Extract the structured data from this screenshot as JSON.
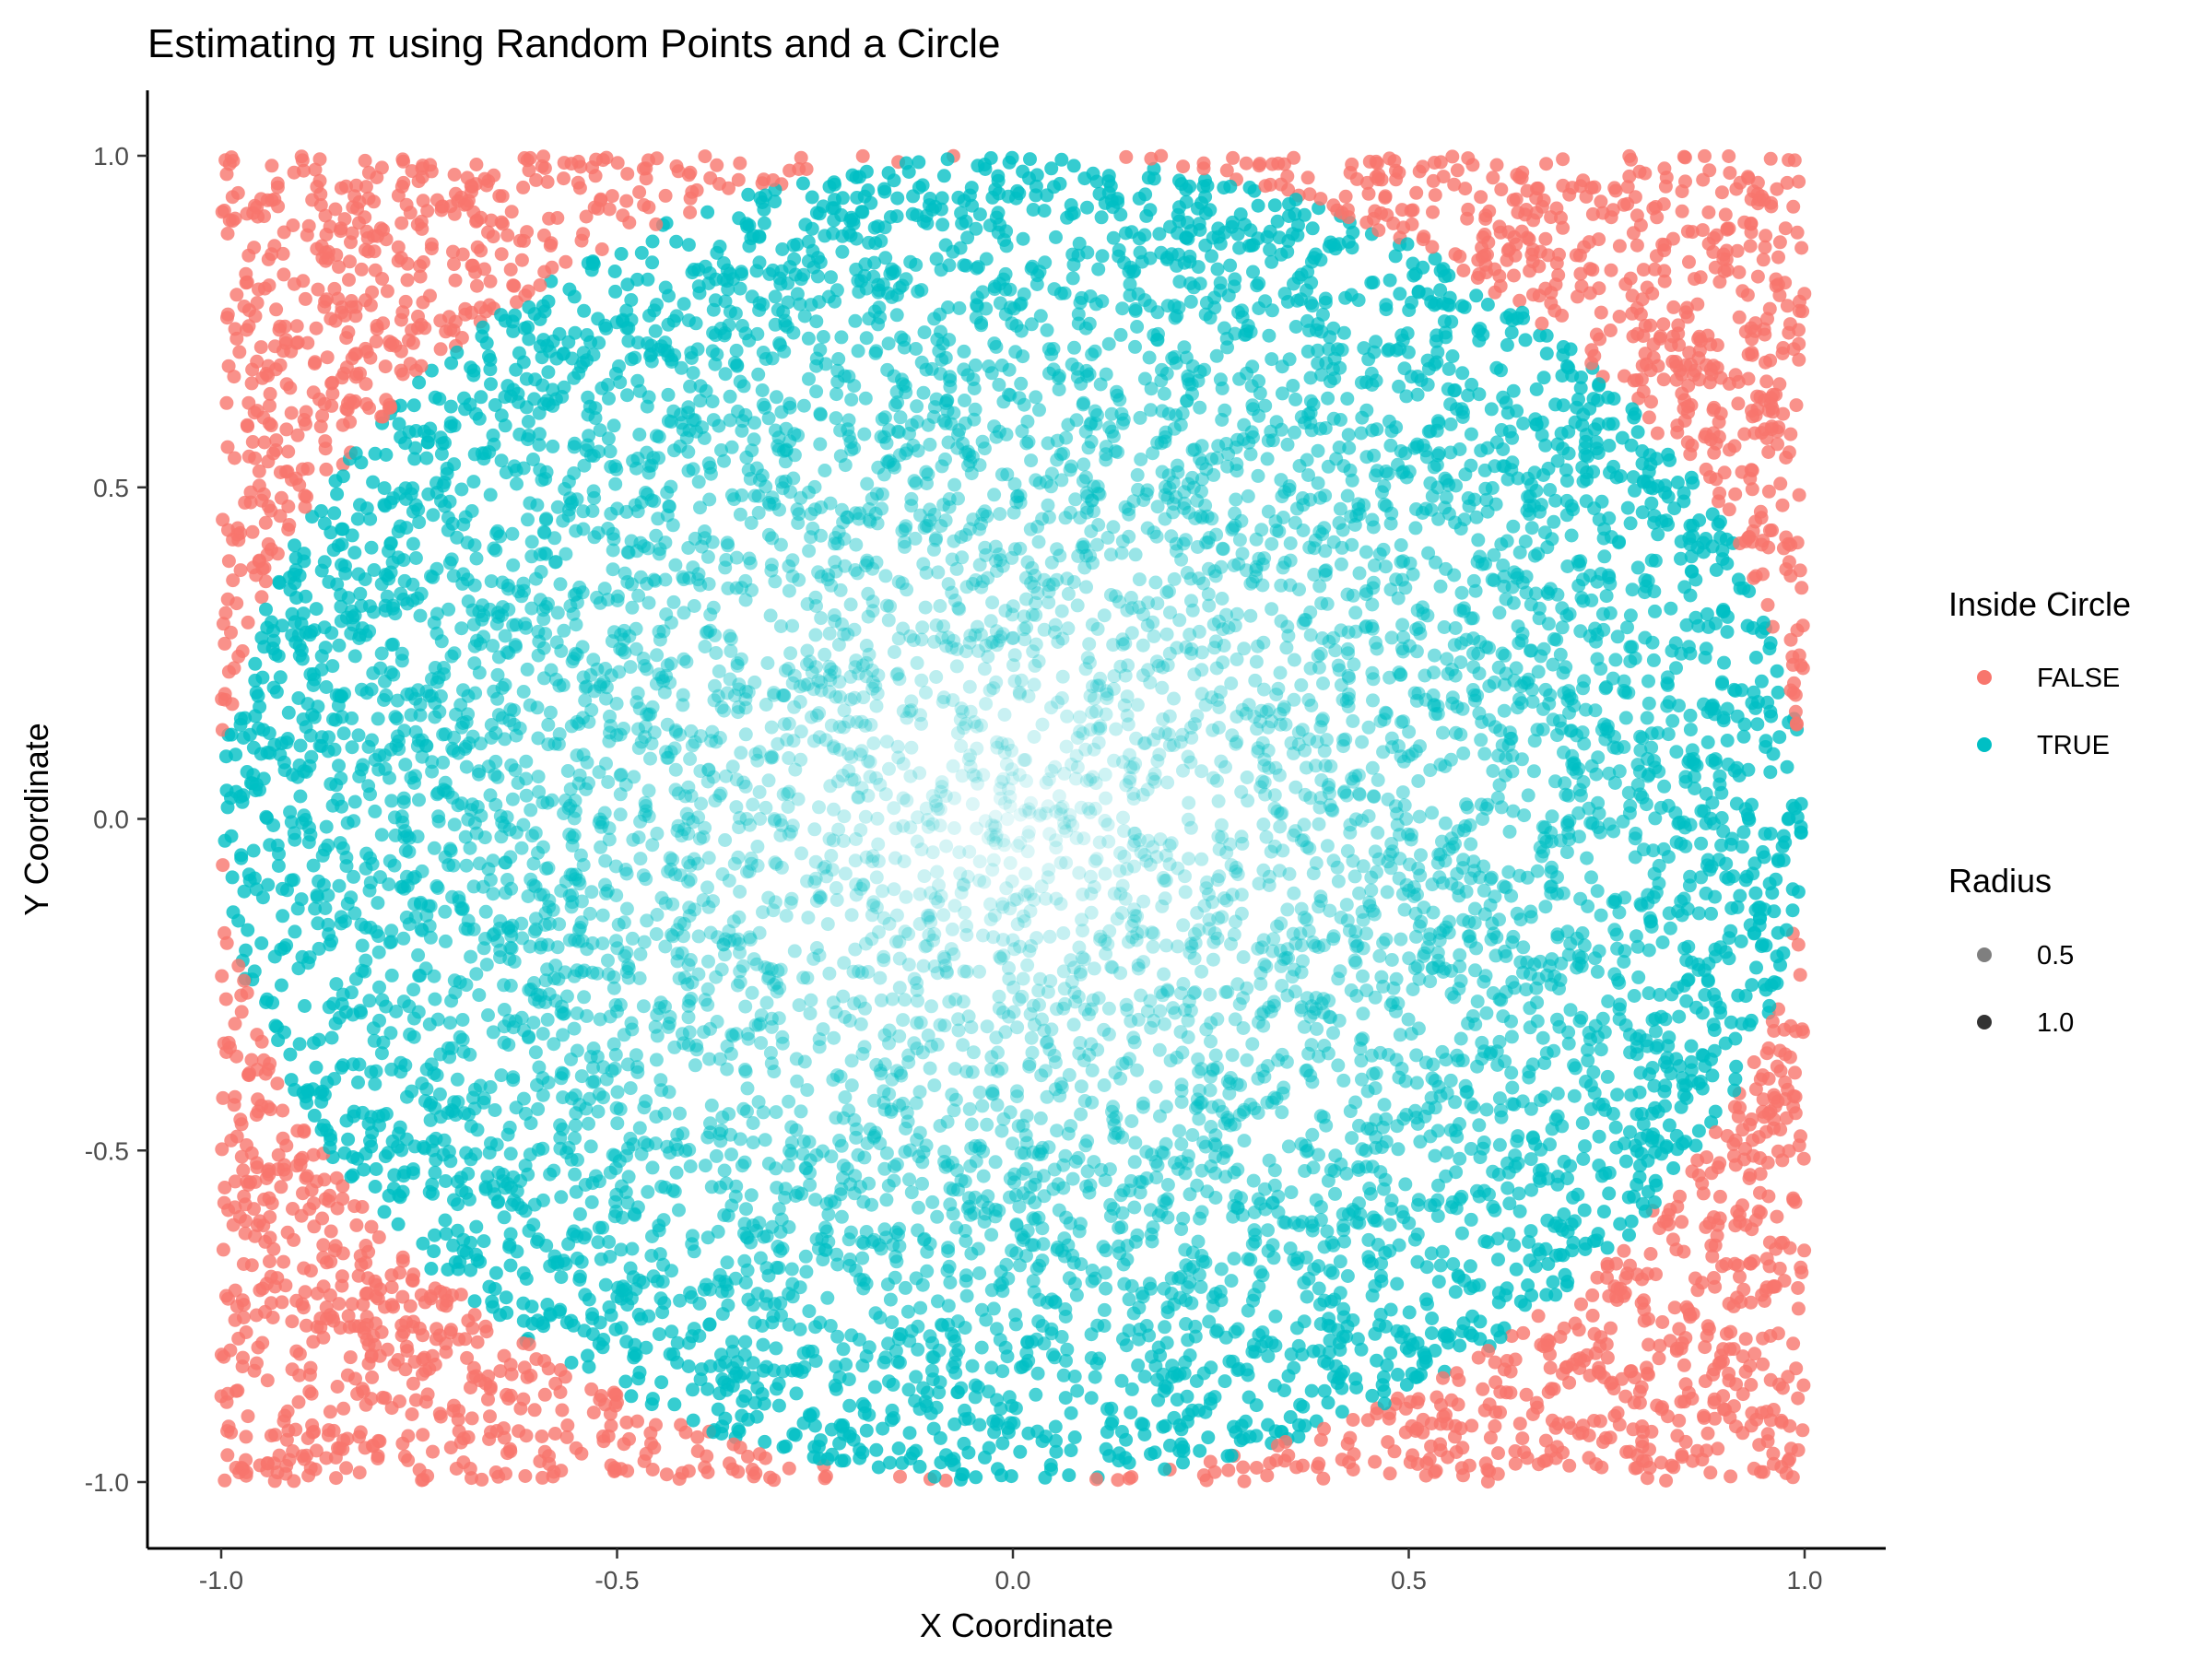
{
  "chart_data": {
    "type": "scatter",
    "title": "Estimating π using Random Points and a Circle",
    "xlabel": "X Coordinate",
    "ylabel": "Y Coordinate",
    "xlim": [
      -1.0,
      1.0
    ],
    "ylim": [
      -1.0,
      1.0
    ],
    "x_ticks": [
      -1.0,
      -0.5,
      0.0,
      0.5,
      1.0
    ],
    "y_ticks": [
      -1.0,
      -0.5,
      0.0,
      0.5,
      1.0
    ],
    "x_tick_labels": [
      "-1.0",
      "-0.5",
      "0.0",
      "0.5",
      "1.0"
    ],
    "y_tick_labels": [
      "-1.0",
      "-0.5",
      "0.0",
      "0.5",
      "1.0"
    ],
    "grid": false,
    "legend_position": "right",
    "point_count": 10000,
    "opacity_encodes": "radius",
    "series": [
      {
        "name": "FALSE",
        "color": "#F8766D",
        "rule": "x^2 + y^2 > 1"
      },
      {
        "name": "TRUE",
        "color": "#00BFC4",
        "rule": "x^2 + y^2 <= 1"
      }
    ],
    "legends": [
      {
        "title": "Inside Circle",
        "items": [
          {
            "label": "FALSE",
            "color": "#F8766D"
          },
          {
            "label": "TRUE",
            "color": "#00BFC4"
          }
        ]
      },
      {
        "title": "Radius",
        "items": [
          {
            "label": "0.5",
            "value": 0.5
          },
          {
            "label": "1.0",
            "value": 1.0
          }
        ]
      }
    ]
  }
}
